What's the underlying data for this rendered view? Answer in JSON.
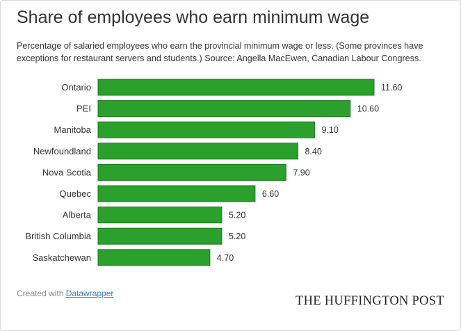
{
  "title": "Share of employees who earn minimum wage",
  "subtitle": "Percentage of salaried employees who earn the provincial minimum wage or less. (Some provinces have exceptions for restaurant servers and students.) Source: Angella MacEwen, Canadian Labour Congress.",
  "credit": {
    "prefix": "Created with ",
    "link_label": "Datawrapper"
  },
  "brand": "THE HUFFINGTON POST",
  "colors": {
    "bar": "#2ca02c",
    "bar_border": "#1a7a1a"
  },
  "chart_data": {
    "type": "bar",
    "orientation": "horizontal",
    "categories": [
      "Ontario",
      "PEI",
      "Manitoba",
      "Newfoundland",
      "Nova Scotia",
      "Quebec",
      "Alberta",
      "British Columbia",
      "Saskatchewan"
    ],
    "values": [
      11.6,
      10.6,
      9.1,
      8.4,
      7.9,
      6.6,
      5.2,
      5.2,
      4.7
    ],
    "value_labels": [
      "11.60",
      "10.60",
      "9.10",
      "8.40",
      "7.90",
      "6.60",
      "5.20",
      "5.20",
      "4.70"
    ],
    "xlim": [
      0,
      11.6
    ],
    "grid": false,
    "legend": "none"
  }
}
